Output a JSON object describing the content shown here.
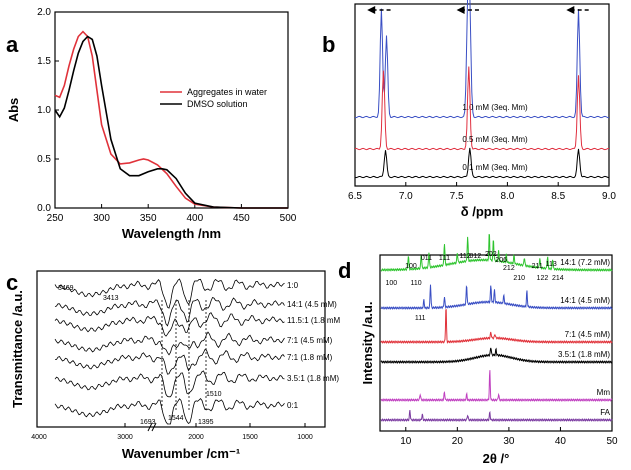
{
  "chart_data": [
    {
      "panel": "a",
      "type": "line",
      "xlabel": "Wavelength /nm",
      "ylabel": "Abs",
      "xlim": [
        250,
        500
      ],
      "ylim": [
        0.0,
        2.0
      ],
      "xticks": [
        "250",
        "300",
        "350",
        "400",
        "450",
        "500"
      ],
      "yticks": [
        "0.0",
        "0.5",
        "1.0",
        "1.5",
        "2.0"
      ],
      "series": [
        {
          "name": "Aggregates in water",
          "color": "#e0323a",
          "x": [
            250,
            255,
            260,
            265,
            270,
            275,
            280,
            285,
            290,
            295,
            300,
            310,
            320,
            330,
            340,
            345,
            350,
            360,
            370,
            380,
            390,
            400,
            420,
            450,
            500
          ],
          "y": [
            1.15,
            1.13,
            1.25,
            1.45,
            1.62,
            1.75,
            1.8,
            1.75,
            1.55,
            1.2,
            0.85,
            0.55,
            0.45,
            0.46,
            0.49,
            0.5,
            0.49,
            0.44,
            0.35,
            0.22,
            0.1,
            0.04,
            0.01,
            0.0,
            0.0
          ]
        },
        {
          "name": "DMSO solution",
          "color": "#000000",
          "x": [
            250,
            255,
            260,
            265,
            270,
            275,
            280,
            285,
            290,
            295,
            300,
            310,
            320,
            330,
            340,
            350,
            360,
            365,
            370,
            380,
            390,
            400,
            420,
            450,
            500
          ],
          "y": [
            1.0,
            0.93,
            1.02,
            1.2,
            1.4,
            1.58,
            1.7,
            1.75,
            1.72,
            1.55,
            1.25,
            0.7,
            0.4,
            0.33,
            0.33,
            0.37,
            0.4,
            0.4,
            0.39,
            0.3,
            0.15,
            0.05,
            0.01,
            0.0,
            0.0
          ]
        }
      ],
      "legend": [
        "Aggregates in water",
        "DMSO solution"
      ]
    },
    {
      "panel": "b",
      "type": "line",
      "xlabel": "δ /ppm",
      "xlim": [
        6.5,
        9.0
      ],
      "xticks": [
        "6.5",
        "7.0",
        "7.5",
        "8.0",
        "8.5",
        "9.0"
      ],
      "series": [
        {
          "name": "1.0 mM (3eq. Mm)",
          "color": "#3a4fc4",
          "peaks": [
            6.76,
            6.81,
            7.61,
            7.63,
            8.7
          ],
          "heights": [
            1.0,
            0.75,
            1.0,
            0.9,
            1.0
          ]
        },
        {
          "name": "0.5 mM (3eq. Mm)",
          "color": "#e03040",
          "peaks": [
            6.78,
            7.62,
            8.7
          ],
          "heights": [
            0.95,
            1.0,
            0.9
          ]
        },
        {
          "name": "0.1 mM (3eq. Mm)",
          "color": "#000000",
          "peaks": [
            6.8,
            7.63,
            8.7
          ],
          "heights": [
            0.6,
            0.65,
            0.62
          ]
        }
      ],
      "arrows": [
        "left",
        "left",
        "left"
      ]
    },
    {
      "panel": "c",
      "type": "line",
      "xlabel": "Wavenumber /cm⁻¹",
      "ylabel": "Transmittance /a.u.",
      "xticks": [
        "4000",
        "3000",
        "2000",
        "1500",
        "1000"
      ],
      "series": [
        {
          "name": "1:0"
        },
        {
          "name": "14:1 (4.5 mM)"
        },
        {
          "name": "11.5:1 (1.8 mM"
        },
        {
          "name": "7:1 (4.5 mM)"
        },
        {
          "name": "7:1 (1.8 mM)"
        },
        {
          "name": "3.5:1 (1.8 mM)"
        },
        {
          "name": "0:1"
        }
      ],
      "annotations": [
        "3469",
        "3413",
        "1693",
        "1544",
        "1510",
        "1395"
      ]
    },
    {
      "panel": "d",
      "type": "line",
      "xlabel": "2θ /°",
      "ylabel": "Intensity /a.u.",
      "xlim": [
        5,
        50
      ],
      "xticks": [
        "10",
        "20",
        "30",
        "40",
        "50"
      ],
      "series": [
        {
          "name": "14:1 (7.2 mM)",
          "color": "#2fc42f"
        },
        {
          "name": "14:1 (4.5 mM)",
          "color": "#3a4fc4"
        },
        {
          "name": "7:1 (4.5 mM)",
          "color": "#e0323a"
        },
        {
          "name": "3.5:1 (1.8 mM)",
          "color": "#000000"
        },
        {
          "name": "Mm",
          "color": "#c040c0"
        },
        {
          "name": "FA",
          "color": "#7a3aa0"
        }
      ],
      "miller_indices": [
        "100",
        "011",
        "1̄11",
        "112",
        "012",
        "2̄02",
        "206",
        "212",
        "210",
        "211",
        "122",
        "113",
        "214"
      ],
      "red_indices": [
        "100",
        "110",
        "111"
      ]
    }
  ]
}
